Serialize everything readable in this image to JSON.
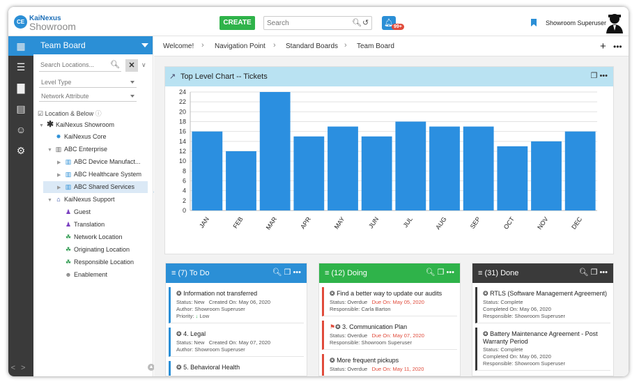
{
  "app": {
    "logo_top": "KaiNexus",
    "logo_bottom": "Showroom",
    "logo_mark": "CE",
    "create_label": "CREATE",
    "search_placeholder": "Search",
    "notification_count": "99+",
    "username": "Showroom Superuser"
  },
  "sidebar": {
    "title": "Team Board",
    "search_placeholder": "Search Locations...",
    "level_type": "Level Type",
    "network_attribute": "Network Attribute",
    "location_below": "Location & Below",
    "tree": [
      {
        "label": "KaiNexus Showroom",
        "icon": "asterisk-icon"
      },
      {
        "label": "KaiNexus Core",
        "icon": "gear-blue-icon"
      },
      {
        "label": "ABC Enterprise",
        "icon": "building-icon"
      },
      {
        "label": "ABC Device Manufact...",
        "icon": "building-blue-icon"
      },
      {
        "label": "ABC Healthcare System",
        "icon": "building-blue-icon"
      },
      {
        "label": "ABC Shared Services",
        "icon": "building-blue-icon"
      },
      {
        "label": "KaiNexus Support",
        "icon": "bank-icon"
      },
      {
        "label": "Guest",
        "icon": "person-icon"
      },
      {
        "label": "Translation",
        "icon": "person-icon"
      },
      {
        "label": "Network Location",
        "icon": "network-icon"
      },
      {
        "label": "Originating Location",
        "icon": "network-icon"
      },
      {
        "label": "Responsible Location",
        "icon": "network-icon"
      },
      {
        "label": "Enablement",
        "icon": "group-icon"
      }
    ]
  },
  "breadcrumb": [
    "Welcome!",
    "Navigation Point",
    "Standard Boards",
    "Team Board"
  ],
  "chart_panel_title": "Top Level Chart -- Tickets",
  "chart_data": {
    "type": "bar",
    "title": "Top Level Chart -- Tickets",
    "categories": [
      "JAN",
      "FEB",
      "MAR",
      "APR",
      "MAY",
      "JUN",
      "JUL",
      "AUG",
      "SEP",
      "OCT",
      "NOV",
      "DEC"
    ],
    "values": [
      16,
      12,
      24,
      15,
      17,
      15,
      18,
      17,
      17,
      13,
      14,
      16
    ],
    "ylim": [
      0,
      24
    ],
    "yticks": [
      0,
      2,
      4,
      6,
      8,
      10,
      12,
      14,
      16,
      18,
      20,
      22,
      24
    ],
    "grid": true,
    "color": "#2b8fe0"
  },
  "columns": [
    {
      "title": "(7) To Do",
      "color": "#2b8fd6",
      "cards": [
        {
          "title": "Information not transferred",
          "status": "Status: New",
          "date": "Created On: May 06, 2020",
          "line2": "Author: Showroom Superuser",
          "line3": "Priority:",
          "priority": "Low"
        },
        {
          "title": "4. Legal",
          "status": "Status: New",
          "date": "Created On: May 07, 2020",
          "line2": "Author: Showroom Superuser",
          "line3": ""
        },
        {
          "title": "5. Behavioral Health",
          "status": "",
          "date": "",
          "line2": "",
          "line3": ""
        }
      ]
    },
    {
      "title": "(12) Doing",
      "color": "#2fb34a",
      "cards": [
        {
          "title": "Find a better way to update our audits",
          "status": "Status: Overdue",
          "date": "Due On: May 05, 2020",
          "line2": "Responsible: Carla Barton"
        },
        {
          "title": "3. Communication Plan",
          "status": "Status: Overdue",
          "date": "Due On: May 07, 2020",
          "line2": "Responsible: Showroom Superuser"
        },
        {
          "title": "More frequent pickups",
          "status": "Status: Overdue",
          "date": "Due On: May 11, 2020",
          "line2": ""
        }
      ]
    },
    {
      "title": "(31) Done",
      "color": "#3a3a3a",
      "cards": [
        {
          "title": "RTLS (Software Management Agreement)",
          "status": "Status: Complete",
          "date": "Completed On: May 06, 2020",
          "line2": "Responsible: Showroom Superuser"
        },
        {
          "title": "Battery Maintenance Agreement - Post Warranty Period",
          "status": "Status: Complete",
          "date": "Completed On: May 06, 2020",
          "line2": "Responsible: Showroom Superuser"
        }
      ]
    }
  ]
}
